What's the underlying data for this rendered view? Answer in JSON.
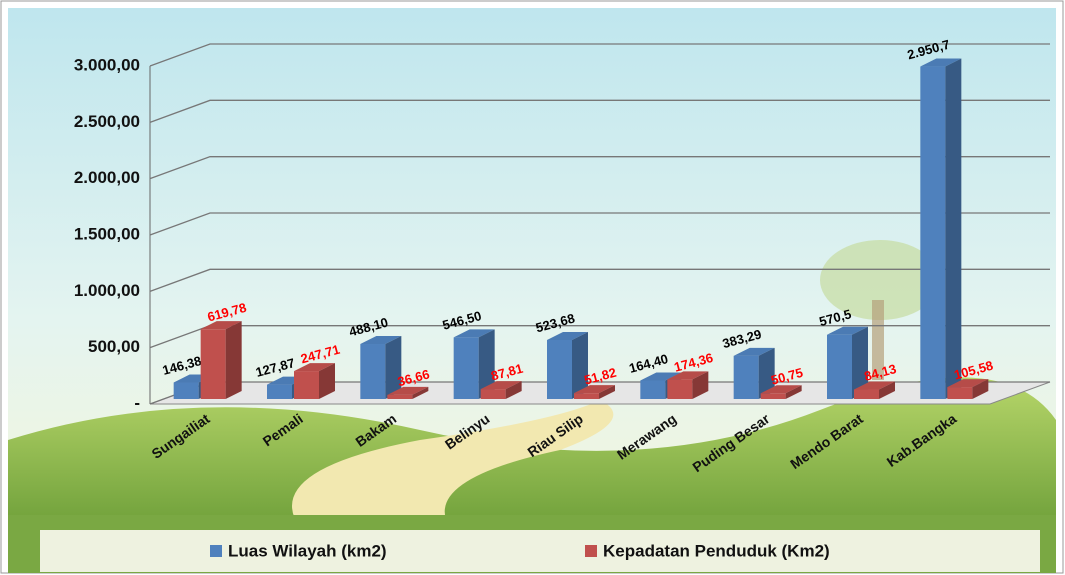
{
  "chart_data": {
    "type": "bar3d",
    "categories": [
      "Sungailiat",
      "Pemali",
      "Bakam",
      "Belinyu",
      "Riau Silip",
      "Merawang",
      "Puding Besar",
      "Mendo Barat",
      "Kab.Bangka"
    ],
    "series": [
      {
        "name": "Luas Wilayah (km2)",
        "color": "#4f81bd",
        "values": [
          146.38,
          127.87,
          488.1,
          546.5,
          523.68,
          164.4,
          383.29,
          570.5,
          2950.7
        ],
        "value_labels": [
          "146,38",
          "127,87",
          "488,10",
          "546,50",
          "523,68",
          "164,40",
          "383,29",
          "570,5",
          "2.950,7"
        ],
        "label_color": "#000000"
      },
      {
        "name": "Kepadatan Penduduk (Km2)",
        "color": "#c0504d",
        "values": [
          619.78,
          247.71,
          36.66,
          87.81,
          51.82,
          174.36,
          50.75,
          84.13,
          105.58
        ],
        "value_labels": [
          "619,78",
          "247,71",
          "36,66",
          "87,81",
          "51,82",
          "174,36",
          "50,75",
          "84,13",
          "105,58"
        ],
        "label_color": "#ff0000"
      }
    ],
    "ylim": [
      0,
      3000
    ],
    "yticks": [
      {
        "value": 0,
        "label": "-"
      },
      {
        "value": 500,
        "label": "500,00"
      },
      {
        "value": 1000,
        "label": "1.000,00"
      },
      {
        "value": 1500,
        "label": "1.500,00"
      },
      {
        "value": 2000,
        "label": "2.000,00"
      },
      {
        "value": 2500,
        "label": "2.500,00"
      },
      {
        "value": 3000,
        "label": "3.000,00"
      }
    ],
    "grid": true,
    "legend": "bottom"
  }
}
